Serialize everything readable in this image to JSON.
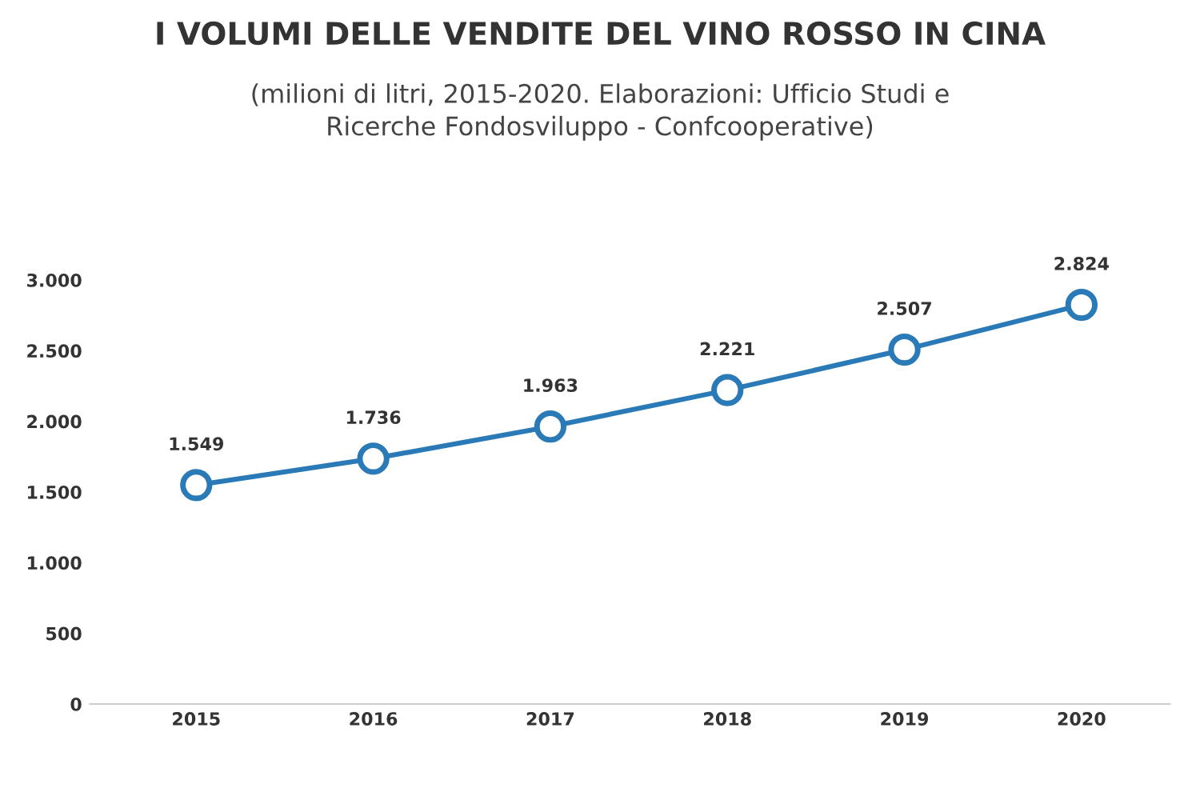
{
  "chart_data": {
    "type": "line",
    "title": "I VOLUMI DELLE VENDITE DEL VINO ROSSO IN CINA",
    "subtitle": "(milioni di litri, 2015-2020. Elaborazioni: Ufficio Studi e\nRicerche Fondosviluppo - Confcooperative)",
    "categories": [
      "2015",
      "2016",
      "2017",
      "2018",
      "2019",
      "2020"
    ],
    "series": [
      {
        "color": "#2a7ab8",
        "values": [
          1549,
          1736,
          1963,
          2221,
          2507,
          2824
        ],
        "value_labels": [
          "1.549",
          "1.736",
          "1.963",
          "2.221",
          "2.507",
          "2.824"
        ]
      }
    ],
    "ylim": [
      0,
      3000
    ],
    "yticks": [
      {
        "value": 0,
        "label": "0"
      },
      {
        "value": 500,
        "label": "500"
      },
      {
        "value": 1000,
        "label": "1.000"
      },
      {
        "value": 1500,
        "label": "1.500"
      },
      {
        "value": 2000,
        "label": "2.000"
      },
      {
        "value": 2500,
        "label": "2.500"
      },
      {
        "value": 3000,
        "label": "3.000"
      }
    ],
    "grid": false,
    "marker": "circle",
    "line_style": "solid"
  }
}
